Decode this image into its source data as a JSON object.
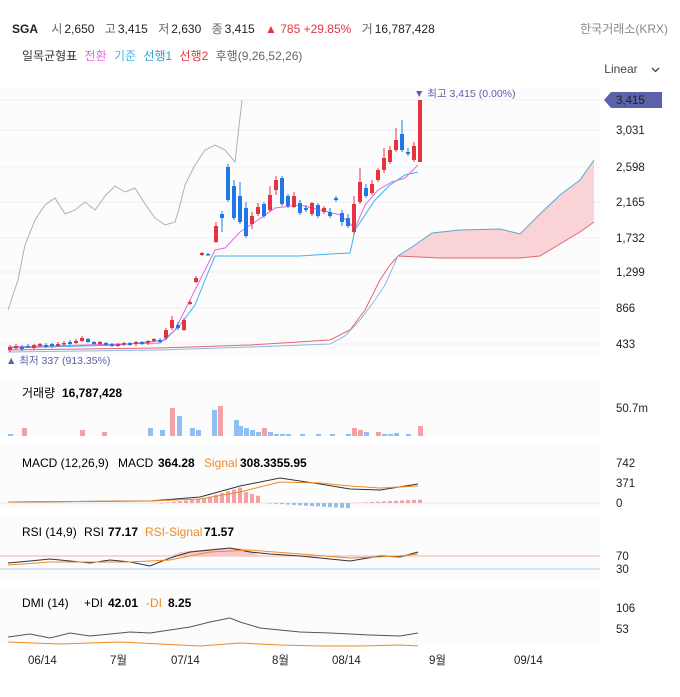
{
  "header": {
    "symbol": "SGA",
    "open_label": "시",
    "open": "2,650",
    "high_label": "고",
    "high": "3,415",
    "low_label": "저",
    "low": "2,630",
    "close_label": "종",
    "close": "3,415",
    "change": "▲ 785 +29.85%",
    "volume_label": "거",
    "volume": "16,787,428",
    "exchange": "한국거래소(KRX)"
  },
  "indicator_legend": {
    "name": "일목균형표",
    "conversion": "전환",
    "base": "기준",
    "span1": "선행1",
    "span2": "선행2",
    "lagging": "후행(9,26,52,26)"
  },
  "scale_selector": {
    "value": "Linear"
  },
  "price_axis": [
    "3,415",
    "3,031",
    "2,598",
    "2,165",
    "1,732",
    "1,299",
    "866",
    "433"
  ],
  "annotations": {
    "high": "▼ 최고 3,415 (0.00%)",
    "low": "▲ 최저 337 (913.35%)"
  },
  "volume_panel": {
    "label": "거래량",
    "value": "16,787,428",
    "axis": [
      "50.7m"
    ]
  },
  "macd_panel": {
    "label": "MACD (12,26,9)",
    "macd_label": "MACD",
    "macd": "364.28",
    "signal_label": "Signal",
    "signal": "308.3355.95",
    "axis": [
      "742",
      "371",
      "0"
    ]
  },
  "rsi_panel": {
    "label": "RSI (14,9)",
    "rsi_label": "RSI",
    "rsi": "77.17",
    "signal_label": "RSI-Signal",
    "signal": "71.57",
    "axis": [
      "70",
      "30"
    ]
  },
  "dmi_panel": {
    "label": "DMI (14)",
    "pdi_label": "+DI",
    "pdi": "42.01",
    "mdi_label": "-DI",
    "mdi": "8.25",
    "axis": [
      "106",
      "53"
    ]
  },
  "x_axis": [
    "06/14",
    "7월",
    "07/14",
    "8월",
    "08/14",
    "9월",
    "09/14"
  ],
  "colors": {
    "up": "#e5343f",
    "down": "#1e78e5",
    "conversion": "#e06be0",
    "base": "#3cb4e6",
    "span_fill": "#f9c8cc",
    "lagging": "#b0b0b0",
    "signal": "#f08a24",
    "accent": "#5a62a8"
  }
}
